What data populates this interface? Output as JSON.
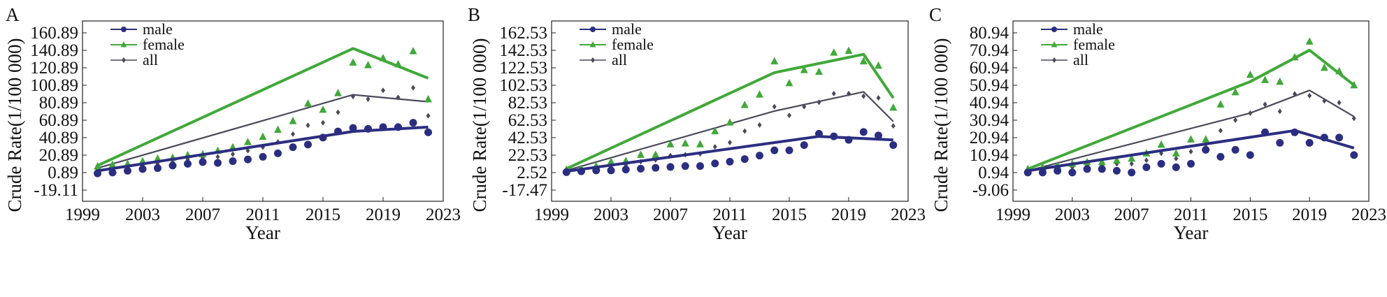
{
  "colors": {
    "male": "#2b2e80",
    "female": "#41a83a",
    "all": "#4a4a5c"
  },
  "chart_data": [
    {
      "type": "line",
      "panel_label": "A",
      "xlabel": "Year",
      "ylabel": "Crude Rate(1/100 000)",
      "x_ticks": [
        "1999",
        "2003",
        "2007",
        "2011",
        "2015",
        "2019",
        "2023"
      ],
      "y_ticks": [
        "-19.11",
        "0.89",
        "20.89",
        "40.89",
        "60.89",
        "80.89",
        "100.89",
        "120.89",
        "140.89",
        "160.89"
      ],
      "xlim": [
        1999,
        2023
      ],
      "ylim": [
        -19.11,
        172
      ],
      "legend": [
        "male",
        "female",
        "all"
      ],
      "series": [
        {
          "name": "male",
          "fit": [
            [
              2000,
              3
            ],
            [
              2017,
              48
            ],
            [
              2022,
              53
            ]
          ],
          "points": [
            [
              2000,
              0
            ],
            [
              2001,
              1
            ],
            [
              2002,
              3
            ],
            [
              2003,
              5
            ],
            [
              2004,
              6
            ],
            [
              2005,
              9
            ],
            [
              2006,
              11
            ],
            [
              2007,
              13
            ],
            [
              2008,
              12
            ],
            [
              2009,
              14
            ],
            [
              2010,
              16
            ],
            [
              2011,
              19
            ],
            [
              2012,
              23
            ],
            [
              2013,
              30
            ],
            [
              2014,
              33
            ],
            [
              2015,
              41
            ],
            [
              2016,
              48
            ],
            [
              2017,
              52
            ],
            [
              2018,
              51
            ],
            [
              2019,
              53
            ],
            [
              2020,
              53
            ],
            [
              2021,
              58
            ],
            [
              2022,
              47
            ]
          ]
        },
        {
          "name": "female",
          "fit": [
            [
              2000,
              9
            ],
            [
              2017,
              143
            ],
            [
              2022,
              109
            ]
          ],
          "points": [
            [
              2000,
              8
            ],
            [
              2001,
              10
            ],
            [
              2002,
              11
            ],
            [
              2003,
              14
            ],
            [
              2004,
              17
            ],
            [
              2005,
              18
            ],
            [
              2006,
              21
            ],
            [
              2007,
              22
            ],
            [
              2008,
              26
            ],
            [
              2009,
              30
            ],
            [
              2010,
              36
            ],
            [
              2011,
              42
            ],
            [
              2012,
              50
            ],
            [
              2013,
              60
            ],
            [
              2014,
              80
            ],
            [
              2015,
              73
            ],
            [
              2016,
              92
            ],
            [
              2017,
              127
            ],
            [
              2018,
              124
            ],
            [
              2019,
              132
            ],
            [
              2020,
              125
            ],
            [
              2021,
              140
            ],
            [
              2022,
              85
            ]
          ]
        },
        {
          "name": "all",
          "fit": [
            [
              2000,
              6
            ],
            [
              2017,
              90
            ],
            [
              2022,
              82
            ]
          ],
          "points": [
            [
              2000,
              4
            ],
            [
              2001,
              5
            ],
            [
              2002,
              7
            ],
            [
              2003,
              9
            ],
            [
              2004,
              11
            ],
            [
              2005,
              13
            ],
            [
              2006,
              16
            ],
            [
              2007,
              18
            ],
            [
              2008,
              19
            ],
            [
              2009,
              22
            ],
            [
              2010,
              26
            ],
            [
              2011,
              30
            ],
            [
              2012,
              36
            ],
            [
              2013,
              45
            ],
            [
              2014,
              55
            ],
            [
              2015,
              58
            ],
            [
              2016,
              70
            ],
            [
              2017,
              88
            ],
            [
              2018,
              85
            ],
            [
              2019,
              95
            ],
            [
              2020,
              87
            ],
            [
              2021,
              98
            ],
            [
              2022,
              66
            ]
          ]
        }
      ]
    },
    {
      "type": "line",
      "panel_label": "B",
      "xlabel": "Year",
      "ylabel": "Crude Rate(1/100 000)",
      "x_ticks": [
        "1999",
        "2003",
        "2007",
        "2011",
        "2015",
        "2019",
        "2023"
      ],
      "y_ticks": [
        "-17.47",
        "2.52",
        "22.53",
        "42.53",
        "62.53",
        "82.53",
        "102.53",
        "122.53",
        "142.53",
        "162.53"
      ],
      "xlim": [
        1999,
        2023
      ],
      "ylim": [
        -17.47,
        174
      ],
      "legend": [
        "male",
        "female",
        "all"
      ],
      "series": [
        {
          "name": "male",
          "fit": [
            [
              2000,
              4
            ],
            [
              2017,
              44
            ],
            [
              2022,
              40
            ]
          ],
          "points": [
            [
              2000,
              3
            ],
            [
              2001,
              4
            ],
            [
              2002,
              5
            ],
            [
              2003,
              5
            ],
            [
              2004,
              6
            ],
            [
              2005,
              7
            ],
            [
              2006,
              8
            ],
            [
              2007,
              9
            ],
            [
              2008,
              10
            ],
            [
              2009,
              10
            ],
            [
              2010,
              13
            ],
            [
              2011,
              15
            ],
            [
              2012,
              18
            ],
            [
              2013,
              22
            ],
            [
              2014,
              28
            ],
            [
              2015,
              28
            ],
            [
              2016,
              34
            ],
            [
              2017,
              47
            ],
            [
              2018,
              44
            ],
            [
              2019,
              40
            ],
            [
              2020,
              49
            ],
            [
              2021,
              45
            ],
            [
              2022,
              34
            ]
          ]
        },
        {
          "name": "female",
          "fit": [
            [
              2000,
              7
            ],
            [
              2014,
              117
            ],
            [
              2020,
              138
            ],
            [
              2022,
              88
            ]
          ],
          "points": [
            [
              2000,
              6
            ],
            [
              2001,
              7
            ],
            [
              2002,
              10
            ],
            [
              2003,
              15
            ],
            [
              2004,
              16
            ],
            [
              2005,
              23
            ],
            [
              2006,
              23
            ],
            [
              2007,
              35
            ],
            [
              2008,
              36
            ],
            [
              2009,
              35
            ],
            [
              2010,
              50
            ],
            [
              2011,
              60
            ],
            [
              2012,
              80
            ],
            [
              2013,
              92
            ],
            [
              2014,
              130
            ],
            [
              2015,
              105
            ],
            [
              2016,
              120
            ],
            [
              2017,
              118
            ],
            [
              2018,
              140
            ],
            [
              2019,
              142
            ],
            [
              2020,
              130
            ],
            [
              2021,
              125
            ],
            [
              2022,
              77
            ]
          ]
        },
        {
          "name": "all",
          "fit": [
            [
              2000,
              5
            ],
            [
              2014,
              73
            ],
            [
              2020,
              95
            ],
            [
              2022,
              61
            ]
          ],
          "points": [
            [
              2000,
              4
            ],
            [
              2001,
              5
            ],
            [
              2002,
              7
            ],
            [
              2003,
              10
            ],
            [
              2004,
              11
            ],
            [
              2005,
              15
            ],
            [
              2006,
              17
            ],
            [
              2007,
              22
            ],
            [
              2008,
              23
            ],
            [
              2009,
              24
            ],
            [
              2010,
              32
            ],
            [
              2011,
              37
            ],
            [
              2012,
              50
            ],
            [
              2013,
              57
            ],
            [
              2014,
              78
            ],
            [
              2015,
              68
            ],
            [
              2016,
              78
            ],
            [
              2017,
              83
            ],
            [
              2018,
              93
            ],
            [
              2019,
              93
            ],
            [
              2020,
              90
            ],
            [
              2021,
              88
            ],
            [
              2022,
              56
            ]
          ]
        }
      ]
    },
    {
      "type": "line",
      "panel_label": "C",
      "xlabel": "Year",
      "ylabel": "Crude Rate(1/100 000)",
      "x_ticks": [
        "1999",
        "2003",
        "2007",
        "2011",
        "2015",
        "2019",
        "2023"
      ],
      "y_ticks": [
        "-9.06",
        "0.94",
        "10.94",
        "20.94",
        "30.94",
        "40.94",
        "50.94",
        "60.94",
        "70.94",
        "80.94"
      ],
      "xlim": [
        1999,
        2023
      ],
      "ylim": [
        -9.06,
        84
      ],
      "legend": [
        "male",
        "female",
        "all"
      ],
      "series": [
        {
          "name": "male",
          "fit": [
            [
              2000,
              2
            ],
            [
              2018,
              25
            ],
            [
              2022,
              15
            ]
          ],
          "points": [
            [
              2000,
              1
            ],
            [
              2001,
              1
            ],
            [
              2002,
              2
            ],
            [
              2003,
              1
            ],
            [
              2004,
              3
            ],
            [
              2005,
              3
            ],
            [
              2006,
              2
            ],
            [
              2007,
              1
            ],
            [
              2008,
              4
            ],
            [
              2009,
              6
            ],
            [
              2010,
              4
            ],
            [
              2011,
              6
            ],
            [
              2012,
              14
            ],
            [
              2013,
              10
            ],
            [
              2014,
              14
            ],
            [
              2015,
              11
            ],
            [
              2016,
              24
            ],
            [
              2017,
              18
            ],
            [
              2018,
              24
            ],
            [
              2019,
              18
            ],
            [
              2020,
              21
            ],
            [
              2021,
              21
            ],
            [
              2022,
              11
            ]
          ]
        },
        {
          "name": "female",
          "fit": [
            [
              2000,
              3
            ],
            [
              2015,
              53
            ],
            [
              2019,
              71
            ],
            [
              2022,
              51
            ]
          ],
          "points": [
            [
              2000,
              3
            ],
            [
              2001,
              4
            ],
            [
              2002,
              5
            ],
            [
              2003,
              6
            ],
            [
              2004,
              7
            ],
            [
              2005,
              7
            ],
            [
              2006,
              8
            ],
            [
              2007,
              9
            ],
            [
              2008,
              12
            ],
            [
              2009,
              17
            ],
            [
              2010,
              12
            ],
            [
              2011,
              20
            ],
            [
              2012,
              20
            ],
            [
              2013,
              40
            ],
            [
              2014,
              47
            ],
            [
              2015,
              57
            ],
            [
              2016,
              54
            ],
            [
              2017,
              53
            ],
            [
              2018,
              67
            ],
            [
              2019,
              76
            ],
            [
              2020,
              61
            ],
            [
              2021,
              59
            ],
            [
              2022,
              51
            ]
          ]
        },
        {
          "name": "all",
          "fit": [
            [
              2000,
              2
            ],
            [
              2015,
              35
            ],
            [
              2019,
              48
            ],
            [
              2022,
              33
            ]
          ],
          "points": [
            [
              2000,
              2
            ],
            [
              2001,
              2
            ],
            [
              2002,
              3
            ],
            [
              2003,
              4
            ],
            [
              2004,
              5
            ],
            [
              2005,
              5
            ],
            [
              2006,
              6
            ],
            [
              2007,
              6
            ],
            [
              2008,
              8
            ],
            [
              2009,
              12
            ],
            [
              2010,
              9
            ],
            [
              2011,
              13
            ],
            [
              2012,
              17
            ],
            [
              2013,
              25
            ],
            [
              2014,
              31
            ],
            [
              2015,
              35
            ],
            [
              2016,
              40
            ],
            [
              2017,
              36
            ],
            [
              2018,
              46
            ],
            [
              2019,
              45
            ],
            [
              2020,
              42
            ],
            [
              2021,
              41
            ],
            [
              2022,
              32
            ]
          ]
        }
      ]
    }
  ]
}
